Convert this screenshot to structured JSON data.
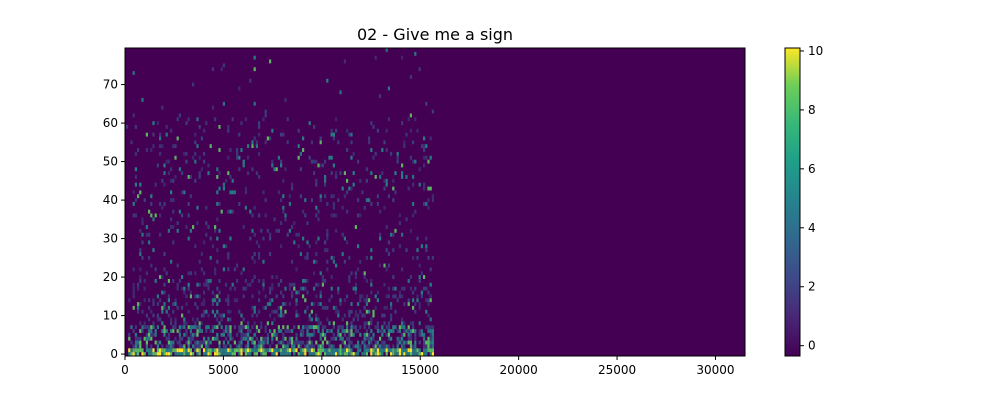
{
  "chart_data": {
    "type": "heatmap",
    "title": "02 - Give me a sign",
    "xlabel": "",
    "ylabel": "",
    "xlim": [
      0,
      31500
    ],
    "ylim": [
      -0.5,
      79.5
    ],
    "x_ticks": [
      0,
      5000,
      10000,
      15000,
      20000,
      25000,
      30000
    ],
    "x_tick_labels": [
      "0",
      "5000",
      "10000",
      "15000",
      "20000",
      "25000",
      "30000"
    ],
    "y_ticks": [
      0,
      10,
      20,
      30,
      40,
      50,
      60,
      70
    ],
    "y_tick_labels": [
      "0",
      "10",
      "20",
      "30",
      "40",
      "50",
      "60",
      "70"
    ],
    "n_bins": 80,
    "signal_end_x": 15600,
    "colormap": "viridis",
    "colorbar": {
      "min": -0.35,
      "max": 10.1,
      "ticks": [
        0,
        2,
        4,
        6,
        8,
        10
      ],
      "tick_labels": [
        "0",
        "2",
        "4",
        "6",
        "8",
        "10"
      ]
    },
    "colors": {
      "background": "#440154",
      "low": "#3b528b",
      "mid": "#21918c",
      "high": "#5ec962",
      "peak": "#fde725"
    },
    "grid": false
  }
}
